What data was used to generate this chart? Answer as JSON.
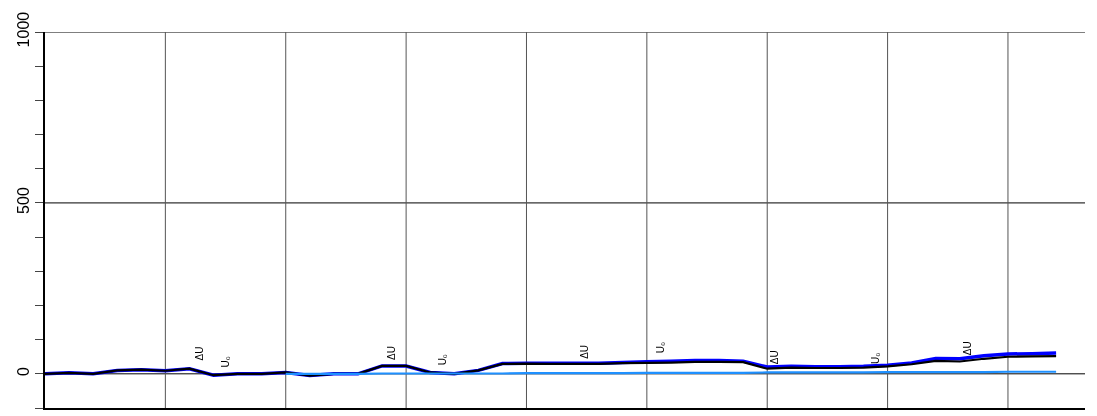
{
  "chart_data": {
    "type": "line",
    "categories": [
      null,
      null,
      null,
      null,
      null,
      null,
      null,
      null,
      null,
      null,
      null,
      null,
      null,
      null,
      null,
      null,
      null,
      null,
      null,
      null,
      null,
      null,
      null,
      null,
      null,
      null,
      null,
      null,
      null,
      null,
      null,
      null,
      null,
      null,
      null,
      null,
      null,
      null,
      null,
      null,
      null,
      null,
      null
    ],
    "series": [
      {
        "color": "#0000ff",
        "values": [
          0,
          3,
          0,
          10,
          12,
          9,
          15,
          -4,
          0,
          0,
          4,
          -5,
          0,
          0,
          23,
          23,
          4,
          0,
          10,
          30,
          31,
          31,
          31,
          31,
          33,
          35,
          37,
          39,
          39,
          37,
          20,
          22,
          21,
          21,
          22,
          25,
          32,
          45,
          44,
          53,
          58,
          59,
          61
        ]
      },
      {
        "color": "#000000",
        "values": [
          0,
          3,
          0,
          10,
          12,
          9,
          15,
          -4,
          0,
          0,
          4,
          -5,
          0,
          0,
          23,
          23,
          4,
          0,
          10,
          29,
          30,
          29,
          29,
          29,
          31,
          32,
          33,
          35,
          35,
          34,
          15,
          18,
          17,
          17,
          18,
          22,
          28,
          38,
          36,
          44,
          50,
          51,
          52
        ]
      },
      {
        "color": "#1e90ff",
        "values": [
          null,
          null,
          null,
          null,
          null,
          null,
          null,
          null,
          null,
          null,
          0,
          0,
          0,
          0,
          1,
          1,
          1,
          1,
          1,
          1,
          2,
          2,
          2,
          2,
          2,
          3,
          3,
          3,
          3,
          3,
          4,
          4,
          4,
          4,
          4,
          5,
          5,
          5,
          5,
          5,
          6,
          6,
          6
        ]
      }
    ],
    "ylim": [
      -100,
      1000
    ],
    "yticks": [
      {
        "value": -100,
        "label": null
      },
      0,
      {
        "value": 100,
        "label": null
      },
      {
        "value": 200,
        "label": null
      },
      {
        "value": 300,
        "label": null
      },
      {
        "value": 400,
        "label": null
      },
      500,
      {
        "value": 600,
        "label": null
      },
      {
        "value": 700,
        "label": null
      },
      {
        "value": 800,
        "label": null
      },
      {
        "value": 900,
        "label": null
      },
      1000
    ],
    "grid": true,
    "marker": "none",
    "line_style": "solid",
    "annotations": [
      "ΔU",
      "U₀",
      "ΔU",
      "U₀",
      "ΔU",
      "U₀",
      "ΔU",
      "U₀",
      "ΔU"
    ]
  }
}
